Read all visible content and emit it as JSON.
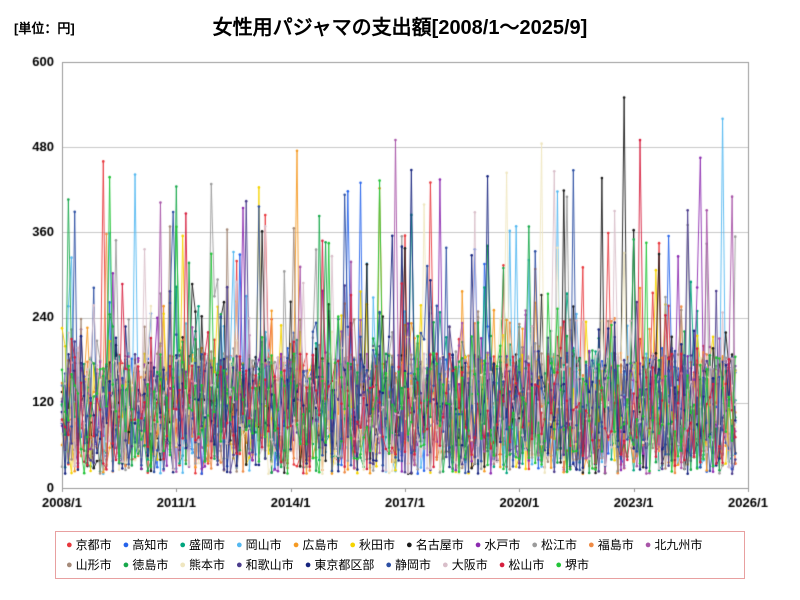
{
  "chart_data": {
    "type": "line",
    "title": "女性用パジャマの支出額[2008/1～2025/9]",
    "unit_label": "[単位：円]",
    "y_axis": {
      "min": 0,
      "max": 600,
      "ticks": [
        0,
        120,
        240,
        360,
        480,
        600
      ],
      "grid": true
    },
    "x_axis": {
      "start": "2008/1",
      "end": "2025/9",
      "total_months": 216,
      "data_months": 213,
      "ticks": [
        {
          "label": "2008/1",
          "month": 0
        },
        {
          "label": "2011/1",
          "month": 36
        },
        {
          "label": "2014/1",
          "month": 72
        },
        {
          "label": "2017/1",
          "month": 108
        },
        {
          "label": "2020/1",
          "month": 144
        },
        {
          "label": "2023/1",
          "month": 180
        },
        {
          "label": "2026/1",
          "month": 216
        }
      ]
    },
    "colors": {
      "grid": "#c9c9c9",
      "axis": "#9a9a9a",
      "legend_border": "#e8a0a0",
      "background": "#ffffff"
    },
    "legend_position": "bottom",
    "value_range_typical": [
      20,
      300
    ],
    "observed_max_approx": 550,
    "generator": {
      "note": "monthly values are dense noise between ~20 and ~300 yen with occasional spikes to 300-550; reproduced with seeded pseudo-random series",
      "base_min": 20,
      "base_span": 170,
      "bump_chance": 0.18,
      "bump_span": 130,
      "spike_chance": 0.02,
      "spike_min": 300,
      "spike_span": 150,
      "clamp": [
        5,
        560
      ]
    },
    "series": [
      {
        "name": "京都市",
        "color": "#e8383d",
        "seed": 11
      },
      {
        "name": "高知市",
        "color": "#2563eb",
        "seed": 12
      },
      {
        "name": "盛岡市",
        "color": "#00a57e",
        "seed": 13
      },
      {
        "name": "岡山市",
        "color": "#54b8f0",
        "seed": 14
      },
      {
        "name": "広島市",
        "color": "#f59a23",
        "seed": 15
      },
      {
        "name": "秋田市",
        "color": "#f5d400",
        "seed": 16
      },
      {
        "name": "名古屋市",
        "color": "#1a1a1a",
        "seed": 17
      },
      {
        "name": "水戸市",
        "color": "#8c2bb0",
        "seed": 18
      },
      {
        "name": "松江市",
        "color": "#9b9b9b",
        "seed": 19
      },
      {
        "name": "福島市",
        "color": "#ef8b45",
        "seed": 20
      },
      {
        "name": "北九州市",
        "color": "#a855a8",
        "seed": 21
      },
      {
        "name": "山形市",
        "color": "#a58b7a",
        "seed": 22
      },
      {
        "name": "徳島市",
        "color": "#17a84b",
        "seed": 23
      },
      {
        "name": "熊本市",
        "color": "#efe6c0",
        "seed": 24
      },
      {
        "name": "和歌山市",
        "color": "#4b3c8c",
        "seed": 25
      },
      {
        "name": "東京都区部",
        "color": "#16247e",
        "seed": 26
      },
      {
        "name": "静岡市",
        "color": "#2c4fa3",
        "seed": 27
      },
      {
        "name": "大阪市",
        "color": "#d9bfca",
        "seed": 28
      },
      {
        "name": "松山市",
        "color": "#d61f3e",
        "seed": 29
      },
      {
        "name": "堺市",
        "color": "#21c437",
        "seed": 30
      }
    ],
    "notable_spikes": [
      {
        "series": "名古屋市",
        "month_index": 177,
        "value": 550,
        "approx_date": "2022/10"
      },
      {
        "series": "岡山市",
        "month_index": 208,
        "value": 520,
        "approx_date": "2025/5"
      },
      {
        "series": "北九州市",
        "month_index": 105,
        "value": 490,
        "approx_date": "2016/10"
      },
      {
        "series": "熊本市",
        "month_index": 151,
        "value": 485,
        "approx_date": "2020/8"
      },
      {
        "series": "京都市",
        "month_index": 13,
        "value": 460,
        "approx_date": "2009/2"
      },
      {
        "series": "広島市",
        "month_index": 74,
        "value": 475,
        "approx_date": "2014/3"
      },
      {
        "series": "水戸市",
        "month_index": 201,
        "value": 465,
        "approx_date": "2024/10"
      },
      {
        "series": "松山市",
        "month_index": 182,
        "value": 490,
        "approx_date": "2023/3"
      }
    ]
  }
}
